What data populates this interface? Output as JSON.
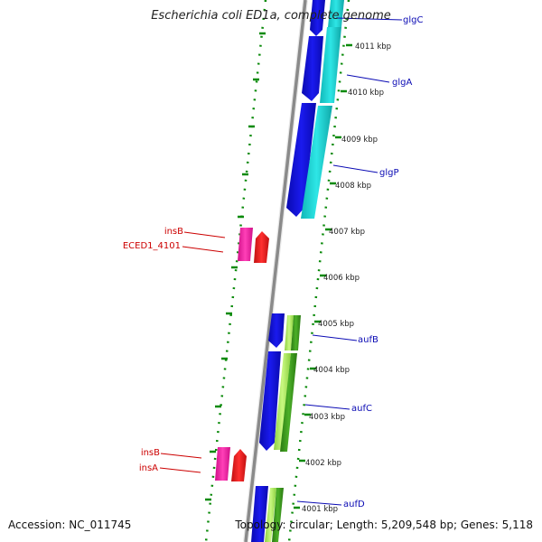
{
  "title": "Escherichia coli ED1a, complete genome",
  "footer": {
    "accession": "Accession: NC_011745",
    "summary": "Topology: circular; Length: 5,209,548 bp; Genes: 5,118"
  },
  "colors": {
    "backbone": "#8c8c8c",
    "tick": "#0a8a0a",
    "forward_gene": "#1414e6",
    "forward_rna": "#18d2d2",
    "forward_green": "#3a9a1a",
    "forward_lime": "#a6e65a",
    "mobile_pink": "#f01aa0",
    "mobile_red": "#ee1a1a",
    "label_blue": "#0a0ab4",
    "label_red": "#cc0000"
  },
  "scale_labels": [
    "4011 kbp",
    "4010 kbp",
    "4009 kbp",
    "4008 kbp",
    "4007 kbp",
    "4006 kbp",
    "4005 kbp",
    "4004 kbp",
    "4003 kbp",
    "4002 kbp",
    "4001 kbp"
  ],
  "gene_labels": [
    {
      "name": "glgC",
      "color_key": "label_blue"
    },
    {
      "name": "glgA",
      "color_key": "label_blue"
    },
    {
      "name": "glgP",
      "color_key": "label_blue"
    },
    {
      "name": "aufB",
      "color_key": "label_blue"
    },
    {
      "name": "aufC",
      "color_key": "label_blue"
    },
    {
      "name": "aufD",
      "color_key": "label_blue"
    },
    {
      "name": "insB",
      "color_key": "label_red"
    },
    {
      "name": "ECED1_4101",
      "color_key": "label_red"
    },
    {
      "name": "insB",
      "color_key": "label_red"
    },
    {
      "name": "insA",
      "color_key": "label_red"
    }
  ]
}
